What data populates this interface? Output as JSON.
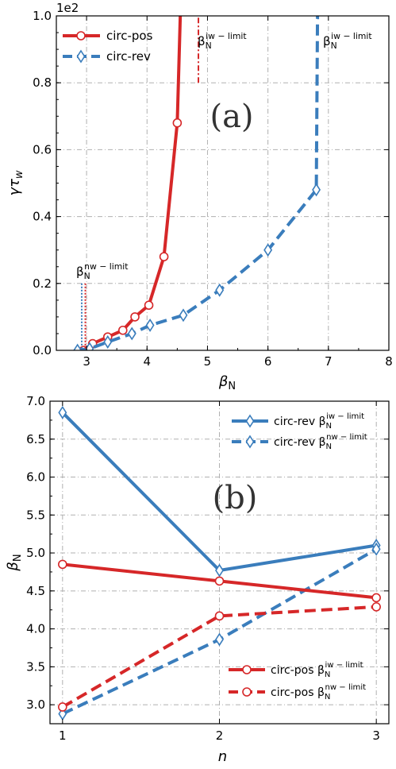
{
  "colors": {
    "red": "#d62728",
    "blue": "#3a7dbc"
  },
  "chart_data": [
    {
      "type": "line",
      "panel_label": "(a)",
      "xlabel": "β_N",
      "ylabel": "γτ_w",
      "offset_text": "1e2",
      "xlim": [
        2.5,
        8
      ],
      "ylim": [
        0,
        1.0
      ],
      "xticks": [
        "3",
        "4",
        "5",
        "6",
        "7",
        "8"
      ],
      "yticks": [
        "0.0",
        "0.2",
        "0.4",
        "0.6",
        "0.8",
        "1.0"
      ],
      "grid": true,
      "legend_position": "top-left",
      "series": [
        {
          "name": "circ-pos",
          "color": "#d62728",
          "style": "solid",
          "marker": "circle",
          "x": [
            2.95,
            3.1,
            3.35,
            3.6,
            3.8,
            4.03,
            4.28,
            4.5,
            4.55
          ],
          "y": [
            0.0,
            0.02,
            0.04,
            0.06,
            0.1,
            0.135,
            0.28,
            0.68,
            1.0
          ],
          "marker_count": 8
        },
        {
          "name": "circ-rev",
          "color": "#3a7dbc",
          "style": "dashed",
          "marker": "diamond",
          "x": [
            2.85,
            3.05,
            3.35,
            3.75,
            4.05,
            4.6,
            5.2,
            6.0,
            6.8,
            6.82
          ],
          "y": [
            0.0,
            0.005,
            0.025,
            0.05,
            0.075,
            0.105,
            0.18,
            0.3,
            0.48,
            1.0
          ],
          "marker_count": 9
        }
      ],
      "annotations": [
        {
          "base": "β",
          "sub": "N",
          "sup": "iw − limit",
          "at_x": 4.85
        },
        {
          "base": "β",
          "sub": "N",
          "sup": "iw − limit",
          "at_x": 6.82
        },
        {
          "base": "β",
          "sub": "N",
          "sup": "nw − limit",
          "at_x": 2.9
        }
      ]
    },
    {
      "type": "line",
      "panel_label": "(b)",
      "xlabel": "n",
      "ylabel": "β_N",
      "xlim": [
        0.92,
        3.08
      ],
      "ylim": [
        2.75,
        7.0
      ],
      "xticks": [
        "1",
        "2",
        "3"
      ],
      "yticks": [
        "3.0",
        "3.5",
        "4.0",
        "4.5",
        "5.0",
        "5.5",
        "6.0",
        "6.5",
        "7.0"
      ],
      "grid": true,
      "series": [
        {
          "name": "circ-rev β_N^iw−limit",
          "base": "circ-rev β",
          "sup": "iw − limit",
          "color": "#3a7dbc",
          "style": "solid",
          "marker": "diamond",
          "x": [
            1,
            2,
            3
          ],
          "y": [
            6.85,
            4.77,
            5.1
          ]
        },
        {
          "name": "circ-rev β_N^nw−limit",
          "base": "circ-rev β",
          "sup": "nw − limit",
          "color": "#3a7dbc",
          "style": "dashed",
          "marker": "diamond",
          "x": [
            1,
            2,
            3
          ],
          "y": [
            2.88,
            3.86,
            5.05
          ]
        },
        {
          "name": "circ-pos β_N^iw−limit",
          "base": "circ-pos β",
          "sup": "iw − limit",
          "color": "#d62728",
          "style": "solid",
          "marker": "circle",
          "x": [
            1,
            2,
            3
          ],
          "y": [
            4.85,
            4.63,
            4.41
          ]
        },
        {
          "name": "circ-pos β_N^nw−limit",
          "base": "circ-pos β",
          "sup": "nw − limit",
          "color": "#d62728",
          "style": "dashed",
          "marker": "circle",
          "x": [
            1,
            2,
            3
          ],
          "y": [
            2.97,
            4.17,
            4.29
          ]
        }
      ]
    }
  ]
}
